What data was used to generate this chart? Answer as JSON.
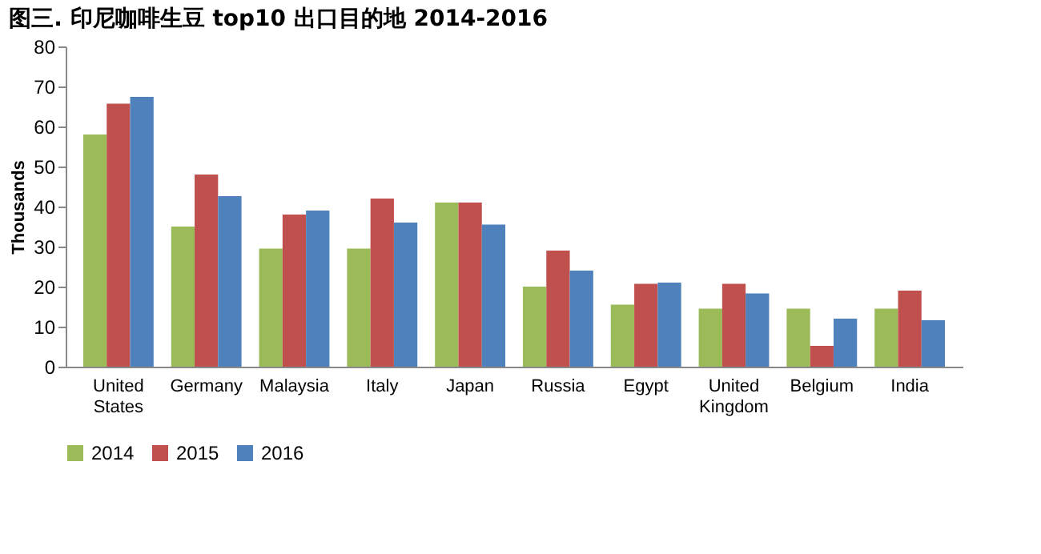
{
  "chart_data": {
    "type": "bar",
    "title": "图三. 印尼咖啡生豆 top10 出口目的地  2014-2016",
    "ylabel": "Thousands",
    "categories": [
      "United States",
      "Germany",
      "Malaysia",
      "Italy",
      "Japan",
      "Russia",
      "Egypt",
      "United Kingdom",
      "Belgium",
      "India"
    ],
    "series": [
      {
        "name": "2014",
        "color": "#9bbb59",
        "values": [
          58,
          35,
          29.5,
          29.5,
          41,
          20,
          15.5,
          14.5,
          14.5,
          14.5
        ]
      },
      {
        "name": "2015",
        "color": "#c0504d",
        "values": [
          65.7,
          48,
          38,
          42,
          41,
          29,
          20.7,
          20.7,
          5.2,
          19
        ]
      },
      {
        "name": "2016",
        "color": "#4f81bd",
        "values": [
          67.4,
          42.6,
          39,
          36,
          35.5,
          24,
          21,
          18.3,
          12,
          11.6
        ]
      }
    ],
    "ylim": [
      0,
      80
    ],
    "yticks": [
      0,
      10,
      20,
      30,
      40,
      50,
      60,
      70,
      80
    ],
    "grid": false,
    "legend": "bottom"
  }
}
